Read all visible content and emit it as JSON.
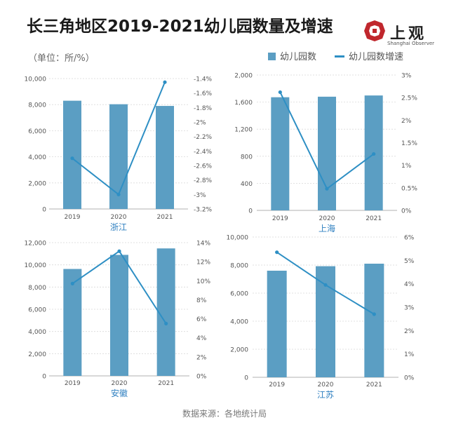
{
  "title": "长三角地区2019-2021幼儿园数量及增速",
  "unit": "（单位：所/%）",
  "logo": {
    "name": "上观",
    "sub": "Shanghai Observer"
  },
  "legend": {
    "bars": "幼儿园数",
    "line": "幼儿园数增速"
  },
  "source": "数据来源：各地统计局",
  "colors": {
    "bar": "#5b9ec3",
    "line": "#2e8fc4",
    "grid": "#d9d9d9",
    "axis_text": "#555555",
    "region_label": "#2e7fc0"
  },
  "chart_data": [
    {
      "type": "bar+line",
      "region": "浙江",
      "categories": [
        "2019",
        "2020",
        "2021"
      ],
      "series": [
        {
          "name": "幼儿园数",
          "axis": "left",
          "values": [
            8300,
            8030,
            7900
          ]
        },
        {
          "name": "幼儿园数增速",
          "axis": "right",
          "values": [
            -2.5,
            -3.0,
            -1.45
          ]
        }
      ],
      "left_ticks": [
        "0",
        "2,000",
        "4,000",
        "6,000",
        "8,000",
        "10,000"
      ],
      "left_range": [
        0,
        10000
      ],
      "right_ticks": [
        "-3.2%",
        "-3%",
        "-2.8%",
        "-2.6%",
        "-2.4%",
        "-2.2%",
        "-2%",
        "-1.8%",
        "-1.6%",
        "-1.4%"
      ],
      "right_range": [
        -3.2,
        -1.4
      ]
    },
    {
      "type": "bar+line",
      "region": "上海",
      "categories": [
        "2019",
        "2020",
        "2021"
      ],
      "series": [
        {
          "name": "幼儿园数",
          "axis": "left",
          "values": [
            1672,
            1680,
            1698
          ]
        },
        {
          "name": "幼儿园数增速",
          "axis": "right",
          "values": [
            2.62,
            0.48,
            1.25
          ]
        }
      ],
      "left_ticks": [
        "0",
        "400",
        "800",
        "1,200",
        "1,600",
        "2,000"
      ],
      "left_range": [
        0,
        2000
      ],
      "right_ticks": [
        "0%",
        "0.5%",
        "1%",
        "1.5%",
        "2%",
        "2.5%",
        "3%"
      ],
      "right_range": [
        0,
        3
      ]
    },
    {
      "type": "bar+line",
      "region": "安徽",
      "categories": [
        "2019",
        "2020",
        "2021"
      ],
      "series": [
        {
          "name": "幼儿园数",
          "axis": "left",
          "values": [
            9630,
            10900,
            11480
          ]
        },
        {
          "name": "幼儿园数增速",
          "axis": "right",
          "values": [
            9.7,
            13.1,
            5.5
          ]
        }
      ],
      "left_ticks": [
        "0",
        "2,000",
        "4,000",
        "6,000",
        "8,000",
        "10,000",
        "12,000"
      ],
      "left_range": [
        0,
        12000
      ],
      "right_ticks": [
        "0%",
        "2%",
        "4%",
        "6%",
        "8%",
        "10%",
        "12%",
        "14%"
      ],
      "right_range": [
        0,
        14
      ]
    },
    {
      "type": "bar+line",
      "region": "江苏",
      "categories": [
        "2019",
        "2020",
        "2021"
      ],
      "series": [
        {
          "name": "幼儿园数",
          "axis": "left",
          "values": [
            7600,
            7920,
            8100
          ]
        },
        {
          "name": "幼儿园数增速",
          "axis": "right",
          "values": [
            5.35,
            3.95,
            2.7
          ]
        }
      ],
      "left_ticks": [
        "0",
        "2,000",
        "4,000",
        "6,000",
        "8,000",
        "10,000"
      ],
      "left_range": [
        0,
        10000
      ],
      "right_ticks": [
        "0%",
        "1%",
        "2%",
        "3%",
        "4%",
        "5%",
        "6%"
      ],
      "right_range": [
        0,
        6
      ]
    }
  ]
}
